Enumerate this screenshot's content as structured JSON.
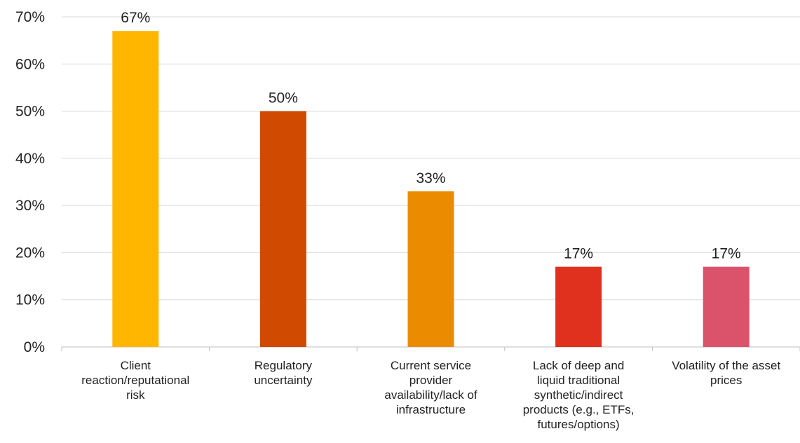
{
  "chart_data": {
    "type": "bar",
    "title": "",
    "xlabel": "",
    "ylabel": "",
    "ylim": [
      0,
      70
    ],
    "y_ticks": [
      "0%",
      "10%",
      "20%",
      "30%",
      "40%",
      "50%",
      "60%",
      "70%"
    ],
    "grid": true,
    "legend": "none",
    "categories": [
      [
        "Client",
        "reaction/reputational",
        "risk"
      ],
      [
        "Regulatory",
        "uncertainty"
      ],
      [
        "Current service",
        "provider",
        "availability/lack of",
        "infrastructure"
      ],
      [
        "Lack of deep and",
        "liquid traditional",
        "synthetic/indirect",
        "products (e.g., ETFs,",
        "futures/options)"
      ],
      [
        "Volatility of the asset",
        "prices"
      ]
    ],
    "values": [
      67,
      50,
      33,
      17,
      17
    ],
    "data_labels": [
      "67%",
      "50%",
      "33%",
      "17%",
      "17%"
    ],
    "colors": [
      "#FFB600",
      "#D04A02",
      "#EB8C00",
      "#E0301E",
      "#DB536A"
    ]
  }
}
